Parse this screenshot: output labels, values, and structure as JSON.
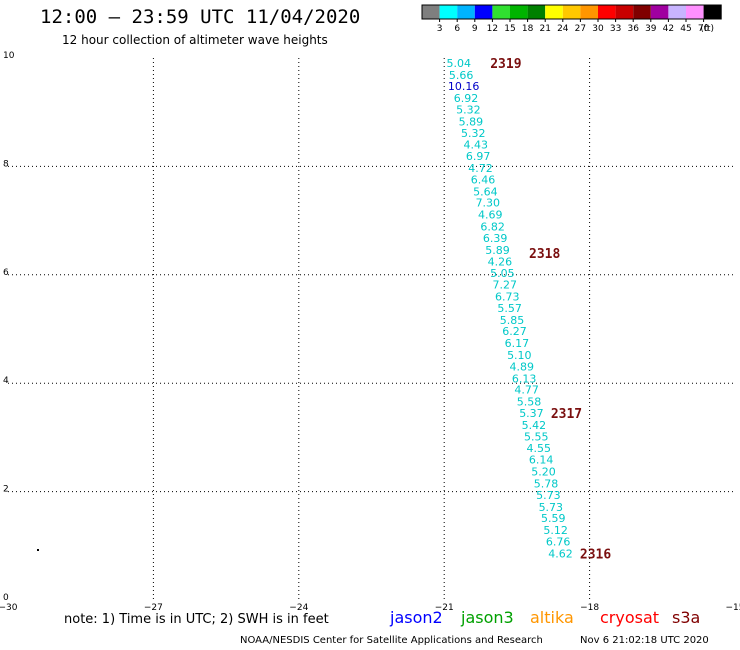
{
  "title": "12:00 – 23:59 UTC 11/04/2020",
  "subtitle": "12 hour collection of altimeter wave heights",
  "legend": {
    "unit": "(ft)",
    "colors": [
      "#7f7f7f",
      "#00ffff",
      "#00b4ff",
      "#0000ff",
      "#30e030",
      "#00b400",
      "#008000",
      "#ffff00",
      "#ffc800",
      "#ff9600",
      "#ff0000",
      "#c80000",
      "#800000",
      "#a000a0",
      "#c8b4ff",
      "#ff90ff",
      "#000000"
    ],
    "labels": [
      "3",
      "6",
      "9",
      "12",
      "15",
      "18",
      "21",
      "24",
      "27",
      "30",
      "33",
      "36",
      "39",
      "42",
      "45",
      "70"
    ]
  },
  "axes": {
    "xlim": [
      -30,
      -15
    ],
    "ylim": [
      0,
      10
    ],
    "x_ticks": [
      {
        "value": -30,
        "label": "−30"
      },
      {
        "value": -27,
        "label": "−27"
      },
      {
        "value": -24,
        "label": "−24"
      },
      {
        "value": -21,
        "label": "−21"
      },
      {
        "value": -18,
        "label": "−18"
      },
      {
        "value": -15,
        "label": "−15"
      }
    ],
    "y_ticks": [
      {
        "value": 0,
        "label": "0"
      },
      {
        "value": 2,
        "label": "2"
      },
      {
        "value": 4,
        "label": "4"
      },
      {
        "value": 6,
        "label": "6"
      },
      {
        "value": 8,
        "label": "8"
      },
      {
        "value": 10,
        "label": "10"
      }
    ]
  },
  "observations": [
    {
      "lon": -20.7,
      "lat": 9.91,
      "swh": "5.04",
      "color": "#00c8c8"
    },
    {
      "lon": -20.65,
      "lat": 9.69,
      "swh": "5.66",
      "color": "#00c8c8"
    },
    {
      "lon": -20.6,
      "lat": 9.48,
      "swh": "10.16",
      "color": "#0000c8"
    },
    {
      "lon": -20.55,
      "lat": 9.26,
      "swh": "6.92",
      "color": "#00c8c8"
    },
    {
      "lon": -20.5,
      "lat": 9.05,
      "swh": "5.32",
      "color": "#00c8c8"
    },
    {
      "lon": -20.45,
      "lat": 8.83,
      "swh": "5.89",
      "color": "#00c8c8"
    },
    {
      "lon": -20.4,
      "lat": 8.62,
      "swh": "5.32",
      "color": "#00c8c8"
    },
    {
      "lon": -20.35,
      "lat": 8.4,
      "swh": "4.43",
      "color": "#00c8c8"
    },
    {
      "lon": -20.3,
      "lat": 8.19,
      "swh": "6.97",
      "color": "#00c8c8"
    },
    {
      "lon": -20.25,
      "lat": 7.97,
      "swh": "4.72",
      "color": "#00c8c8"
    },
    {
      "lon": -20.2,
      "lat": 7.76,
      "swh": "6.46",
      "color": "#00c8c8"
    },
    {
      "lon": -20.15,
      "lat": 7.54,
      "swh": "5.64",
      "color": "#00c8c8"
    },
    {
      "lon": -20.1,
      "lat": 7.33,
      "swh": "7.30",
      "color": "#00c8c8"
    },
    {
      "lon": -20.05,
      "lat": 7.11,
      "swh": "4.69",
      "color": "#00c8c8"
    },
    {
      "lon": -20.0,
      "lat": 6.89,
      "swh": "6.82",
      "color": "#00c8c8"
    },
    {
      "lon": -19.95,
      "lat": 6.68,
      "swh": "6.39",
      "color": "#00c8c8"
    },
    {
      "lon": -19.9,
      "lat": 6.46,
      "swh": "5.89",
      "color": "#00c8c8"
    },
    {
      "lon": -19.85,
      "lat": 6.25,
      "swh": "4.26",
      "color": "#00c8c8"
    },
    {
      "lon": -19.8,
      "lat": 6.03,
      "swh": "5.05",
      "color": "#00c8c8"
    },
    {
      "lon": -19.75,
      "lat": 5.82,
      "swh": "7.27",
      "color": "#00c8c8"
    },
    {
      "lon": -19.7,
      "lat": 5.6,
      "swh": "6.73",
      "color": "#00c8c8"
    },
    {
      "lon": -19.65,
      "lat": 5.39,
      "swh": "5.57",
      "color": "#00c8c8"
    },
    {
      "lon": -19.6,
      "lat": 5.17,
      "swh": "5.85",
      "color": "#00c8c8"
    },
    {
      "lon": -19.55,
      "lat": 4.96,
      "swh": "6.27",
      "color": "#00c8c8"
    },
    {
      "lon": -19.5,
      "lat": 4.74,
      "swh": "6.17",
      "color": "#00c8c8"
    },
    {
      "lon": -19.45,
      "lat": 4.52,
      "swh": "5.10",
      "color": "#00c8c8"
    },
    {
      "lon": -19.4,
      "lat": 4.31,
      "swh": "4.89",
      "color": "#00c8c8"
    },
    {
      "lon": -19.35,
      "lat": 4.09,
      "swh": "6.13",
      "color": "#00c8c8"
    },
    {
      "lon": -19.3,
      "lat": 3.88,
      "swh": "4.77",
      "color": "#00c8c8"
    },
    {
      "lon": -19.25,
      "lat": 3.66,
      "swh": "5.58",
      "color": "#00c8c8"
    },
    {
      "lon": -19.2,
      "lat": 3.45,
      "swh": "5.37",
      "color": "#00c8c8"
    },
    {
      "lon": -19.15,
      "lat": 3.23,
      "swh": "5.42",
      "color": "#00c8c8"
    },
    {
      "lon": -19.1,
      "lat": 3.02,
      "swh": "5.55",
      "color": "#00c8c8"
    },
    {
      "lon": -19.05,
      "lat": 2.8,
      "swh": "4.55",
      "color": "#00c8c8"
    },
    {
      "lon": -19.0,
      "lat": 2.59,
      "swh": "6.14",
      "color": "#00c8c8"
    },
    {
      "lon": -18.95,
      "lat": 2.37,
      "swh": "5.20",
      "color": "#00c8c8"
    },
    {
      "lon": -18.9,
      "lat": 2.15,
      "swh": "5.78",
      "color": "#00c8c8"
    },
    {
      "lon": -18.85,
      "lat": 1.94,
      "swh": "5.73",
      "color": "#00c8c8"
    },
    {
      "lon": -18.8,
      "lat": 1.72,
      "swh": "5.73",
      "color": "#00c8c8"
    },
    {
      "lon": -18.75,
      "lat": 1.51,
      "swh": "5.59",
      "color": "#00c8c8"
    },
    {
      "lon": -18.7,
      "lat": 1.29,
      "swh": "5.12",
      "color": "#00c8c8"
    },
    {
      "lon": -18.65,
      "lat": 1.08,
      "swh": "6.76",
      "color": "#00c8c8"
    },
    {
      "lon": -18.6,
      "lat": 0.86,
      "swh": "4.62",
      "color": "#00c8c8"
    }
  ],
  "pass_labels": [
    {
      "lon": -20.05,
      "lat": 9.91,
      "text": "2319"
    },
    {
      "lon": -19.25,
      "lat": 6.4,
      "text": "2318"
    },
    {
      "lon": -18.8,
      "lat": 3.45,
      "text": "2317"
    },
    {
      "lon": -18.2,
      "lat": 0.86,
      "text": "2316"
    }
  ],
  "note": "note: 1) Time is in UTC; 2) SWH is in feet",
  "satellites": [
    {
      "name": "jason2",
      "color": "#0000ff"
    },
    {
      "name": "jason3",
      "color": "#00a000"
    },
    {
      "name": "altika",
      "color": "#ff9600"
    },
    {
      "name": "cryosat",
      "color": "#ff0000"
    },
    {
      "name": "s3a",
      "color": "#800000"
    }
  ],
  "credit": "NOAA/NESDIS Center for Satellite Applications and Research",
  "timestamp": "Nov  6 21:02:18 UTC 2020"
}
